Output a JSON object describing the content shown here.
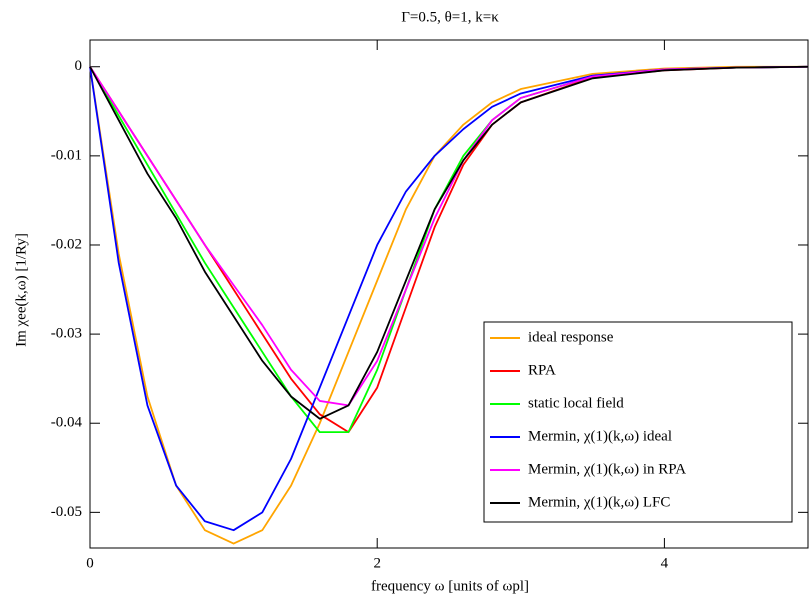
{
  "chart_data": {
    "type": "line",
    "title": "Γ=0.5, θ=1, k=κ",
    "x_label": "frequency ω [units of ωpl]",
    "y_label": "Im χee(k,ω) [1/Ry]",
    "x": [
      0,
      0.2,
      0.4,
      0.6,
      0.8,
      1.0,
      1.2,
      1.4,
      1.6,
      1.8,
      2.0,
      2.2,
      2.4,
      2.6,
      2.8,
      3.0,
      3.5,
      4.0,
      4.5,
      5.0
    ],
    "xlim": [
      0,
      5
    ],
    "xticks": [
      0,
      2,
      4
    ],
    "ylim": [
      -0.054,
      0.003
    ],
    "yticks": [
      0,
      -0.01,
      -0.02,
      -0.03,
      -0.04,
      -0.05
    ],
    "grid": false,
    "legend": "lower right",
    "series": [
      {
        "name": "ideal response",
        "color": "#ffa500",
        "values": [
          0,
          -0.021,
          -0.037,
          -0.047,
          -0.052,
          -0.0535,
          -0.052,
          -0.047,
          -0.04,
          -0.032,
          -0.024,
          -0.016,
          -0.01,
          -0.0065,
          -0.004,
          -0.0025,
          -0.0008,
          -0.0002,
          0,
          0
        ]
      },
      {
        "name": "RPA",
        "color": "#ff0000",
        "values": [
          0,
          -0.005,
          -0.01,
          -0.015,
          -0.02,
          -0.025,
          -0.03,
          -0.035,
          -0.039,
          -0.041,
          -0.036,
          -0.027,
          -0.018,
          -0.011,
          -0.0065,
          -0.004,
          -0.0012,
          -0.0004,
          -0.0001,
          0
        ]
      },
      {
        "name": "static local field",
        "color": "#00ff00",
        "values": [
          0,
          -0.0055,
          -0.011,
          -0.0165,
          -0.022,
          -0.027,
          -0.032,
          -0.037,
          -0.041,
          -0.041,
          -0.034,
          -0.025,
          -0.016,
          -0.01,
          -0.006,
          -0.0035,
          -0.0011,
          -0.0003,
          -0.0001,
          0
        ]
      },
      {
        "name": "Mermin, χ(1)(k,ω) ideal",
        "color": "#0000ff",
        "values": [
          0,
          -0.022,
          -0.038,
          -0.047,
          -0.051,
          -0.052,
          -0.05,
          -0.044,
          -0.036,
          -0.028,
          -0.02,
          -0.014,
          -0.01,
          -0.007,
          -0.0045,
          -0.003,
          -0.001,
          -0.0003,
          -0.0001,
          0
        ]
      },
      {
        "name": "Mermin, χ(1)(k,ω) in RPA",
        "color": "#ff00ff",
        "values": [
          0,
          -0.005,
          -0.01,
          -0.015,
          -0.02,
          -0.0245,
          -0.029,
          -0.034,
          -0.0375,
          -0.038,
          -0.033,
          -0.025,
          -0.017,
          -0.0105,
          -0.006,
          -0.0035,
          -0.0011,
          -0.0003,
          -0.0001,
          0
        ]
      },
      {
        "name": "Mermin, χ(1)(k,ω) LFC",
        "color": "#000000",
        "values": [
          0,
          -0.006,
          -0.012,
          -0.017,
          -0.023,
          -0.028,
          -0.033,
          -0.037,
          -0.0395,
          -0.038,
          -0.032,
          -0.024,
          -0.016,
          -0.0105,
          -0.0065,
          -0.004,
          -0.0013,
          -0.0004,
          -0.0001,
          0
        ]
      }
    ]
  }
}
